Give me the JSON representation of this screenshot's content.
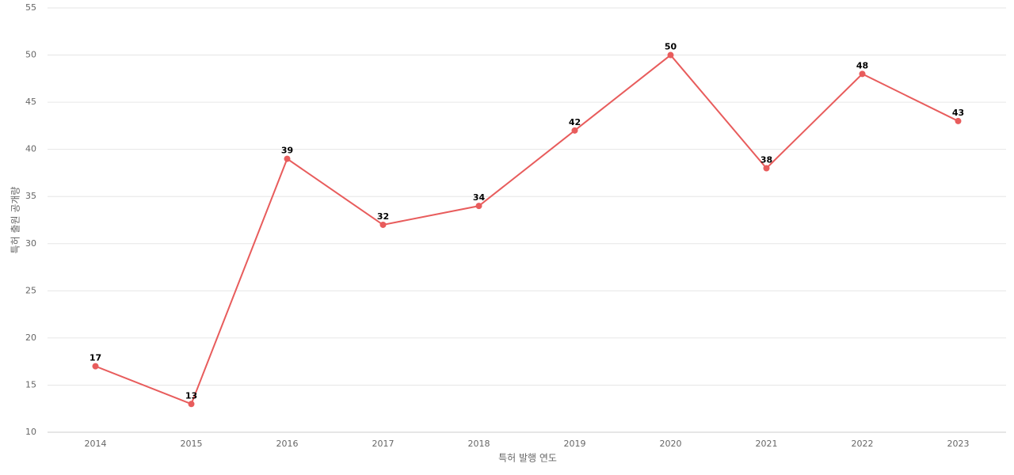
{
  "chart_data": {
    "type": "line",
    "x_label": "특허 발행 연도",
    "y_label": "특허 출원 공개량",
    "categories": [
      "2014",
      "2015",
      "2016",
      "2017",
      "2018",
      "2019",
      "2020",
      "2021",
      "2022",
      "2023"
    ],
    "series": [
      {
        "name": "특허 출원 공개량",
        "color": "#e85c5c",
        "values": [
          17,
          13,
          39,
          32,
          34,
          42,
          50,
          38,
          48,
          43
        ]
      }
    ],
    "ylim": [
      10,
      55
    ],
    "yticks": [
      10,
      15,
      20,
      25,
      30,
      35,
      40,
      45,
      50,
      55
    ],
    "grid": true
  }
}
